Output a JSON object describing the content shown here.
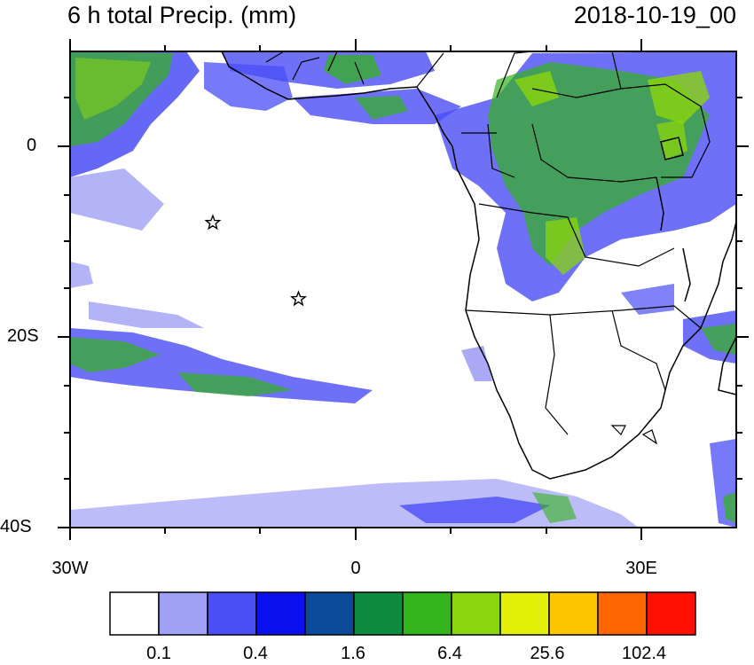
{
  "title": "6 h total Precip. (mm)",
  "date": "2018-10-19_00",
  "y_axis": {
    "labels": [
      "0",
      "20S",
      "40S"
    ]
  },
  "x_axis": {
    "labels": [
      "30W",
      "0",
      "30E"
    ]
  },
  "colorbar": {
    "colors": [
      "#ffffff",
      "#a0a0f5",
      "#4a4ef5",
      "#0a10ee",
      "#0a4a98",
      "#0e8b3c",
      "#33b41a",
      "#8ad50c",
      "#e2f00a",
      "#fdc400",
      "#fd6600",
      "#fe1000"
    ],
    "labels": [
      "0.1",
      "0.4",
      "1.6",
      "6.4",
      "25.6",
      "102.4"
    ]
  },
  "markers": [
    {
      "type": "star",
      "lon": -15,
      "lat": -8
    },
    {
      "type": "star",
      "lon": -6,
      "lat": -16
    }
  ],
  "map": {
    "extent": {
      "lon_min": -30,
      "lon_max": 40,
      "lat_min": -40,
      "lat_max": 10
    }
  }
}
